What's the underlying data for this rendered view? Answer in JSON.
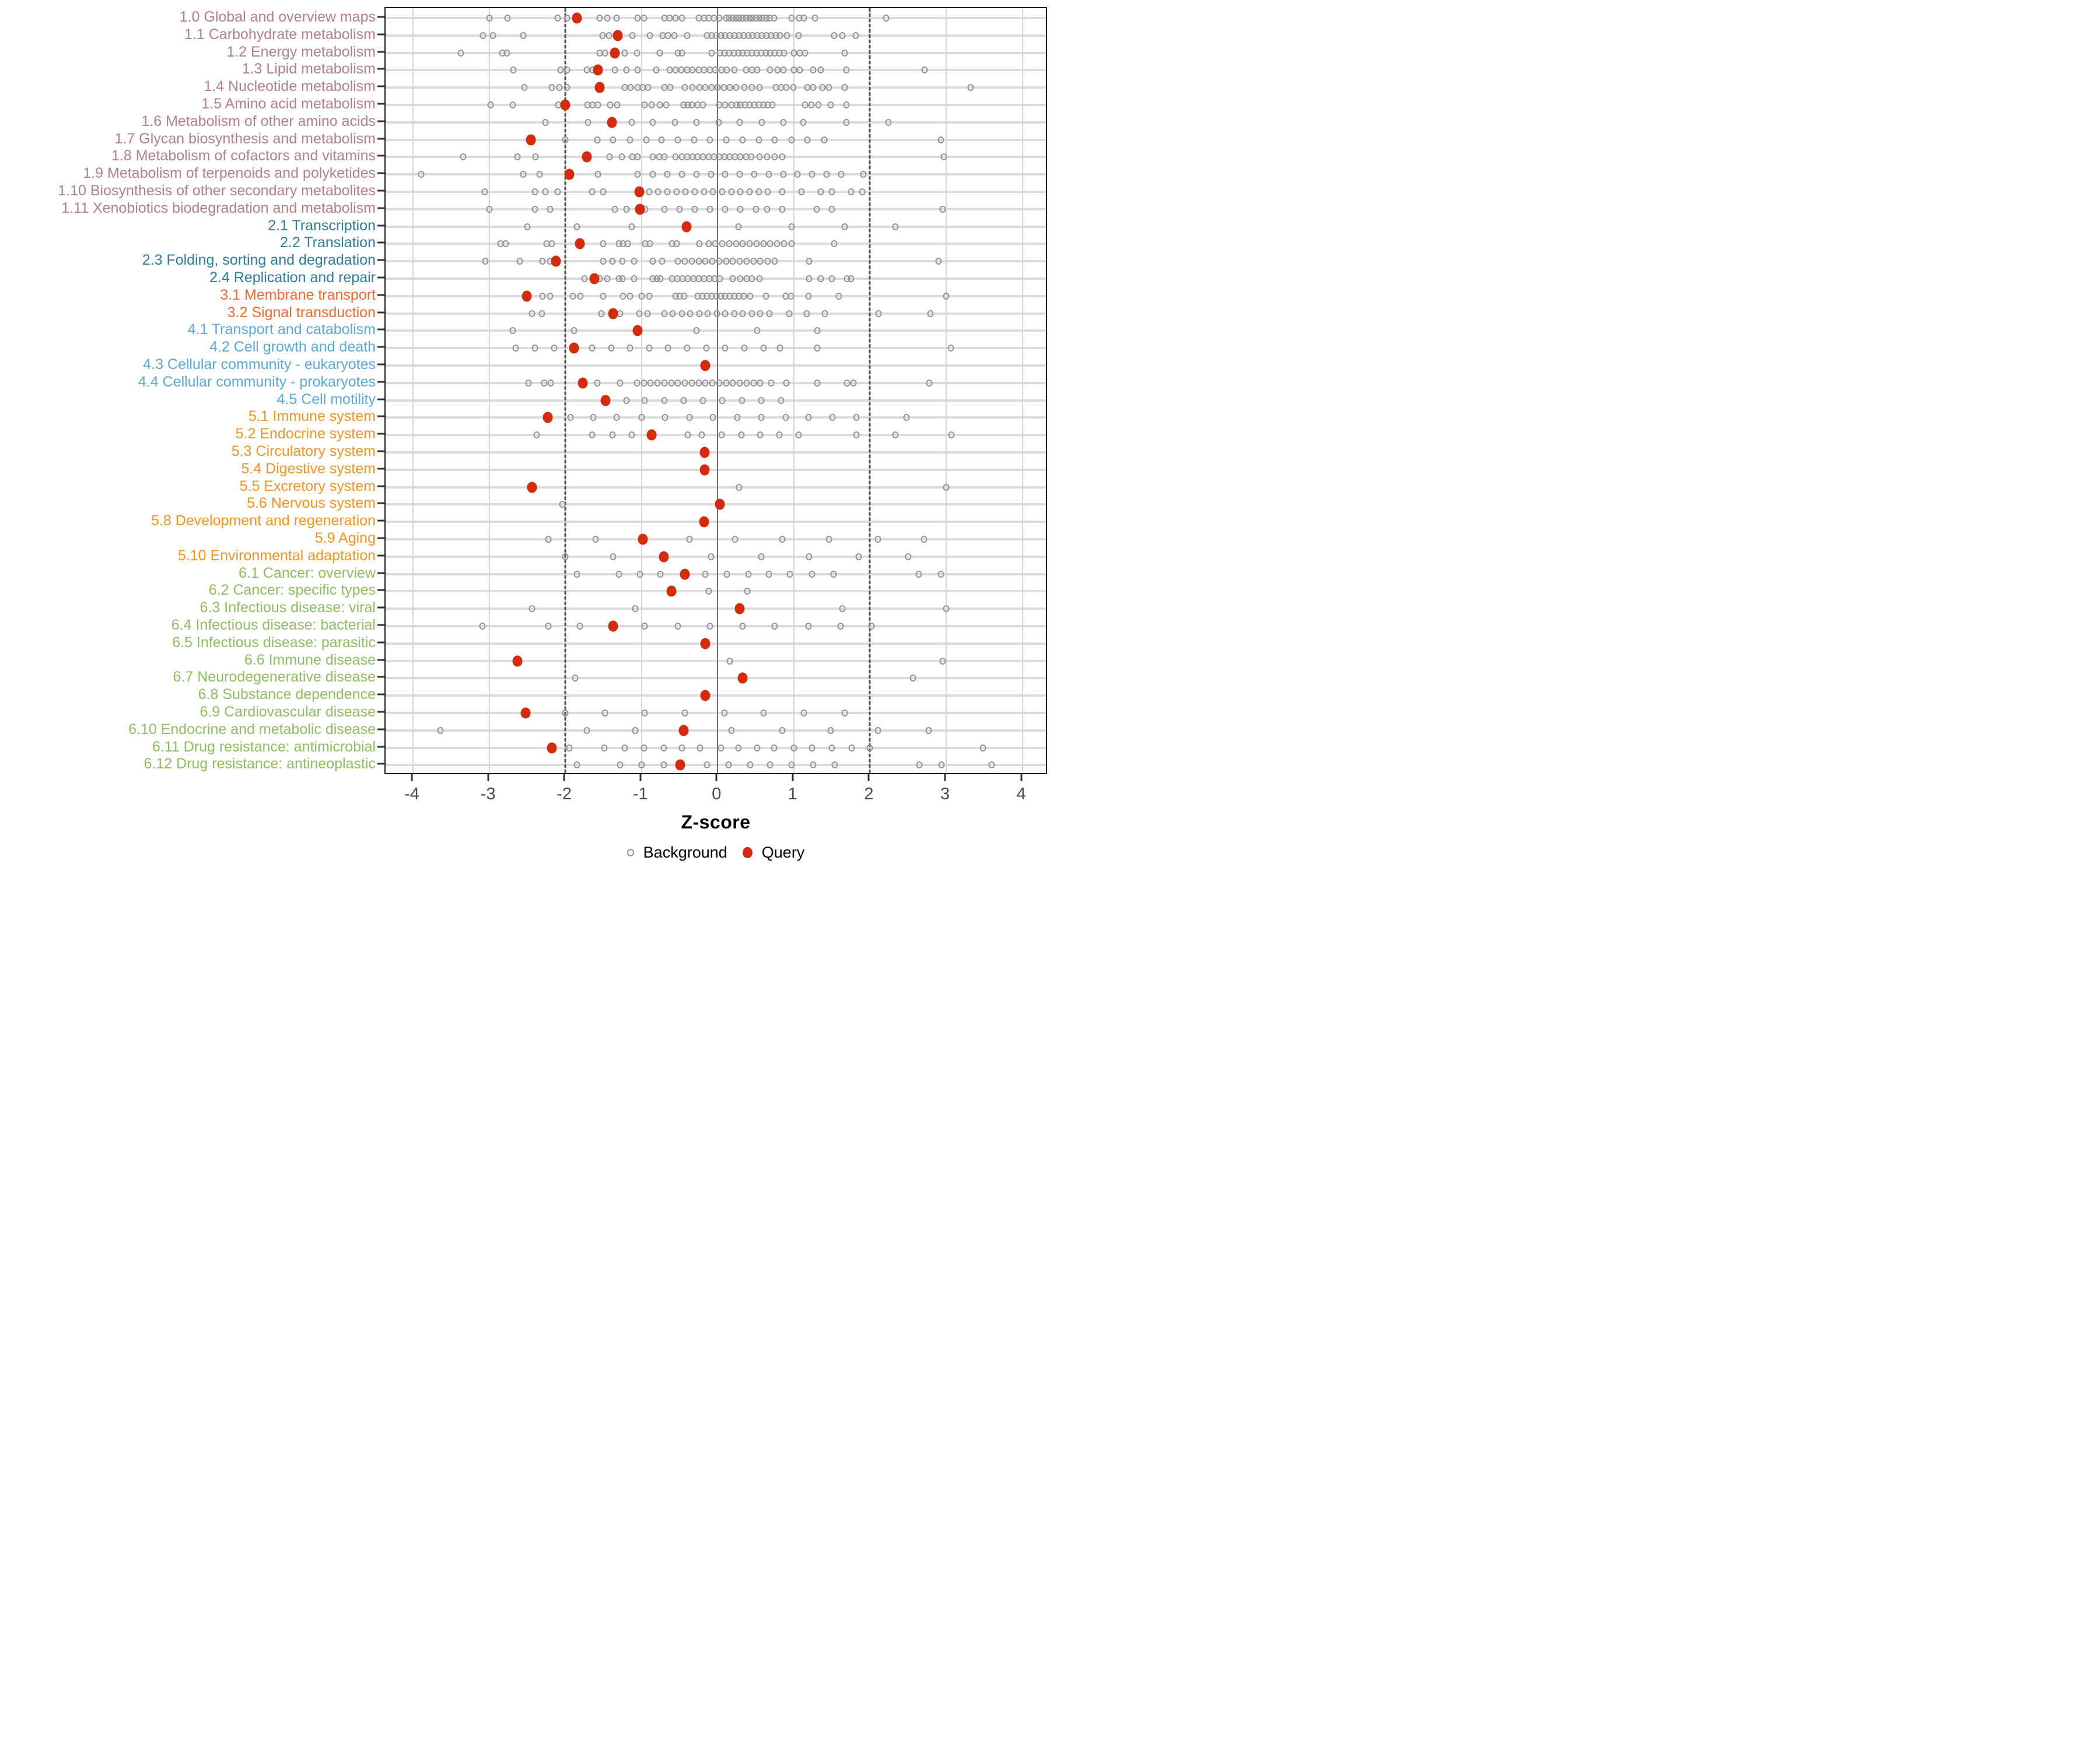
{
  "axis": {
    "xlabel": "Z-score",
    "tick_labels": [
      "-4",
      "-3",
      "-2",
      "-1",
      "0",
      "1",
      "2",
      "3",
      "4"
    ]
  },
  "legend": {
    "background_label": "Background",
    "query_label": "Query"
  },
  "colors": {
    "query": "#d52b0c",
    "background_stroke": "#949494",
    "group_1": "#b4808c",
    "group_2": "#2e7f9d",
    "group_3": "#f4692e",
    "group_4": "#58a9dc",
    "group_5": "#f79420",
    "group_6": "#8ebe5f",
    "grid": "#d6d6d6",
    "zero_line": "#6e6e6e",
    "dashed_line": "#4d4d4d"
  },
  "chart_data": {
    "type": "scatter",
    "title": "",
    "xlabel": "Z-score",
    "ylabel": "",
    "xlim": [
      -4.36,
      4.34
    ],
    "x_ticks": [
      -4,
      -3,
      -2,
      -1,
      0,
      1,
      2,
      3,
      4
    ],
    "reference_lines": {
      "solid": [
        0
      ],
      "dashed": [
        -2,
        2
      ]
    },
    "grid": true,
    "legend_position": "bottom",
    "legend_entries": [
      "Background",
      "Query"
    ],
    "categories": [
      {
        "label": "1.0 Global and overview maps",
        "group": "1",
        "query": -1.85,
        "background": [
          -3.0,
          -2.76,
          -2.1,
          -1.98,
          -1.55,
          -1.45,
          -1.33,
          -1.05,
          -0.97,
          -0.7,
          -0.63,
          -0.55,
          -0.47,
          -0.25,
          -0.18,
          -0.12,
          -0.05,
          0.02,
          0.11,
          0.15,
          0.2,
          0.24,
          0.28,
          0.33,
          0.37,
          0.42,
          0.46,
          0.5,
          0.55,
          0.59,
          0.64,
          0.68,
          0.74,
          0.97,
          1.07,
          1.13,
          1.28,
          2.21
        ]
      },
      {
        "label": "1.1 Carbohydrate metabolism",
        "group": "1",
        "query": -1.31,
        "background": [
          -3.08,
          -2.95,
          -2.55,
          -1.51,
          -1.43,
          -1.29,
          -1.12,
          -0.89,
          -0.72,
          -0.65,
          -0.57,
          -0.4,
          -0.14,
          -0.08,
          -0.02,
          0.04,
          0.1,
          0.16,
          0.22,
          0.28,
          0.34,
          0.4,
          0.46,
          0.52,
          0.58,
          0.64,
          0.7,
          0.76,
          0.82,
          0.91,
          1.06,
          1.53,
          1.64,
          1.81
        ]
      },
      {
        "label": "1.2 Energy metabolism",
        "group": "1",
        "query": -1.35,
        "background": [
          -3.37,
          -2.83,
          -2.77,
          -1.55,
          -1.48,
          -1.22,
          -1.06,
          -0.76,
          -0.52,
          -0.47,
          -0.08,
          0.03,
          0.09,
          0.15,
          0.21,
          0.27,
          0.33,
          0.39,
          0.45,
          0.51,
          0.57,
          0.63,
          0.69,
          0.75,
          0.81,
          0.87,
          1.0,
          1.08,
          1.15,
          1.67
        ]
      },
      {
        "label": "1.3 Lipid metabolism",
        "group": "1",
        "query": -1.57,
        "background": [
          -2.68,
          -2.06,
          -1.98,
          -1.72,
          -1.64,
          -1.35,
          -1.2,
          -1.05,
          -0.81,
          -0.63,
          -0.55,
          -0.48,
          -0.4,
          -0.33,
          -0.25,
          -0.18,
          -0.1,
          -0.03,
          0.05,
          0.12,
          0.22,
          0.37,
          0.45,
          0.52,
          0.69,
          0.79,
          0.86,
          1.0,
          1.08,
          1.25,
          1.35,
          1.69,
          2.72
        ]
      },
      {
        "label": "1.4 Nucleotide metabolism",
        "group": "1",
        "query": -1.55,
        "background": [
          -2.54,
          -2.18,
          -2.08,
          -1.98,
          -1.22,
          -1.14,
          -1.05,
          -0.98,
          -0.91,
          -0.7,
          -0.62,
          -0.43,
          -0.33,
          -0.24,
          -0.16,
          -0.08,
          0.0,
          0.08,
          0.16,
          0.24,
          0.35,
          0.45,
          0.55,
          0.76,
          0.83,
          0.9,
          0.99,
          1.18,
          1.25,
          1.38,
          1.46,
          1.67,
          3.32
        ]
      },
      {
        "label": "1.5 Amino acid metabolism",
        "group": "1",
        "query": -2.0,
        "background": [
          -2.98,
          -2.69,
          -2.09,
          -2.02,
          -1.71,
          -1.64,
          -1.57,
          -1.41,
          -1.32,
          -0.96,
          -0.87,
          -0.76,
          -0.68,
          -0.45,
          -0.39,
          -0.34,
          -0.26,
          -0.19,
          0.02,
          0.1,
          0.18,
          0.25,
          0.3,
          0.36,
          0.42,
          0.48,
          0.54,
          0.6,
          0.66,
          0.72,
          1.15,
          1.23,
          1.32,
          1.48,
          1.69
        ]
      },
      {
        "label": "1.6 Metabolism of other amino acids",
        "group": "1",
        "query": -1.39,
        "background": [
          -2.26,
          -1.7,
          -1.13,
          -0.85,
          -0.56,
          -0.28,
          0.01,
          0.29,
          0.58,
          0.86,
          1.12,
          1.69,
          2.24
        ]
      },
      {
        "label": "1.7 Glycan biosynthesis and metabolism",
        "group": "1",
        "query": -2.45,
        "background": [
          -2.0,
          -1.58,
          -1.37,
          -1.15,
          -0.94,
          -0.74,
          -0.52,
          -0.31,
          -0.1,
          0.11,
          0.33,
          0.54,
          0.75,
          0.97,
          1.18,
          1.4,
          2.93
        ]
      },
      {
        "label": "1.8 Metabolism of cofactors and vitamins",
        "group": "1",
        "query": -1.72,
        "background": [
          -3.34,
          -2.63,
          -2.39,
          -1.42,
          -1.26,
          -1.12,
          -1.05,
          -0.85,
          -0.77,
          -0.7,
          -0.55,
          -0.47,
          -0.4,
          -0.33,
          -0.26,
          -0.19,
          -0.12,
          -0.05,
          0.02,
          0.09,
          0.16,
          0.23,
          0.3,
          0.37,
          0.44,
          0.55,
          0.65,
          0.75,
          0.85,
          2.97
        ]
      },
      {
        "label": "1.9 Metabolism of terpenoids and polyketides",
        "group": "1",
        "query": -1.95,
        "background": [
          -3.89,
          -2.55,
          -2.34,
          -1.57,
          -1.05,
          -0.85,
          -0.66,
          -0.47,
          -0.28,
          -0.09,
          0.1,
          0.29,
          0.48,
          0.67,
          0.86,
          1.05,
          1.24,
          1.43,
          1.62,
          1.91
        ]
      },
      {
        "label": "1.10 Biosynthesis of other secondary metabolites",
        "group": "1",
        "query": -1.03,
        "background": [
          -3.06,
          -2.4,
          -2.26,
          -2.1,
          -1.65,
          -1.5,
          -0.9,
          -0.78,
          -0.66,
          -0.54,
          -0.42,
          -0.3,
          -0.18,
          -0.06,
          0.06,
          0.18,
          0.3,
          0.42,
          0.54,
          0.66,
          0.85,
          1.1,
          1.35,
          1.5,
          1.75,
          1.9
        ]
      },
      {
        "label": "1.11 Xenobiotics biodegradation and metabolism",
        "group": "1",
        "query": -1.02,
        "background": [
          -3.0,
          -2.4,
          -2.2,
          -1.35,
          -1.2,
          -0.95,
          -0.7,
          -0.5,
          -0.3,
          -0.1,
          0.1,
          0.3,
          0.5,
          0.65,
          0.85,
          1.3,
          1.5,
          2.95
        ]
      },
      {
        "label": "2.1 Transcription",
        "group": "2",
        "query": -0.41,
        "background": [
          -2.5,
          -1.85,
          -1.13,
          0.27,
          0.97,
          1.67,
          2.33
        ]
      },
      {
        "label": "2.2 Translation",
        "group": "2",
        "query": -1.81,
        "background": [
          -2.85,
          -2.78,
          -2.25,
          -2.18,
          -1.5,
          -1.3,
          -1.24,
          -1.18,
          -0.95,
          -0.89,
          -0.6,
          -0.54,
          -0.24,
          -0.12,
          -0.03,
          0.06,
          0.15,
          0.24,
          0.33,
          0.42,
          0.51,
          0.6,
          0.69,
          0.78,
          0.87,
          0.97,
          1.53
        ]
      },
      {
        "label": "2.3 Folding, sorting and degradation",
        "group": "2",
        "query": -2.12,
        "background": [
          -3.05,
          -2.6,
          -2.3,
          -2.2,
          -1.5,
          -1.38,
          -1.25,
          -1.1,
          -0.85,
          -0.73,
          -0.52,
          -0.43,
          -0.34,
          -0.25,
          -0.16,
          -0.07,
          0.02,
          0.11,
          0.2,
          0.29,
          0.38,
          0.47,
          0.56,
          0.66,
          0.75,
          1.2,
          2.9
        ]
      },
      {
        "label": "2.4 Replication and repair",
        "group": "2",
        "query": -1.62,
        "background": [
          -1.75,
          -1.55,
          -1.45,
          -1.3,
          -1.25,
          -1.1,
          -0.85,
          -0.8,
          -0.75,
          -0.6,
          -0.53,
          -0.46,
          -0.39,
          -0.32,
          -0.25,
          -0.18,
          -0.11,
          -0.04,
          0.03,
          0.2,
          0.3,
          0.38,
          0.45,
          0.55,
          1.2,
          1.35,
          1.5,
          1.7,
          1.75
        ]
      },
      {
        "label": "3.1 Membrane transport",
        "group": "3",
        "query": -2.51,
        "background": [
          -2.3,
          -2.2,
          -1.9,
          -1.8,
          -1.5,
          -1.24,
          -1.15,
          -1.0,
          -0.9,
          -0.55,
          -0.5,
          -0.44,
          -0.26,
          -0.2,
          -0.14,
          -0.08,
          -0.02,
          0.04,
          0.1,
          0.16,
          0.22,
          0.28,
          0.34,
          0.43,
          0.63,
          0.89,
          0.96,
          1.19,
          1.59,
          3.0
        ]
      },
      {
        "label": "3.2 Signal transduction",
        "group": "3",
        "query": -1.37,
        "background": [
          -2.44,
          -2.31,
          -1.53,
          -1.28,
          -1.03,
          -0.92,
          -0.7,
          -0.59,
          -0.47,
          -0.36,
          -0.24,
          -0.13,
          -0.01,
          0.1,
          0.22,
          0.33,
          0.45,
          0.56,
          0.68,
          0.94,
          1.17,
          1.41,
          2.11,
          2.79
        ]
      },
      {
        "label": "4.1 Transport and catabolism",
        "group": "4",
        "query": -1.05,
        "background": [
          -2.69,
          -1.89,
          -0.28,
          0.52,
          1.31
        ]
      },
      {
        "label": "4.2 Cell growth and death",
        "group": "4",
        "query": -1.89,
        "background": [
          -2.65,
          -2.4,
          -2.15,
          -1.65,
          -1.4,
          -1.15,
          -0.9,
          -0.65,
          -0.4,
          -0.15,
          0.1,
          0.35,
          0.6,
          0.82,
          1.31,
          3.06
        ]
      },
      {
        "label": "4.3 Cellular community - eukaryotes",
        "group": "4",
        "query": -0.16,
        "background": []
      },
      {
        "label": "4.4 Cellular community - prokaryotes",
        "group": "4",
        "query": -1.77,
        "background": [
          -2.48,
          -2.28,
          -2.19,
          -1.58,
          -1.28,
          -1.06,
          -0.97,
          -0.88,
          -0.79,
          -0.7,
          -0.61,
          -0.52,
          -0.43,
          -0.34,
          -0.25,
          -0.16,
          -0.07,
          0.02,
          0.11,
          0.2,
          0.29,
          0.38,
          0.47,
          0.56,
          0.7,
          0.9,
          1.31,
          1.7,
          1.78,
          2.78
        ]
      },
      {
        "label": "4.5 Cell motility",
        "group": "4",
        "query": -1.47,
        "background": [
          -1.2,
          -0.96,
          -0.7,
          -0.45,
          -0.19,
          0.06,
          0.32,
          0.57,
          0.83
        ]
      },
      {
        "label": "5.1 Immune system",
        "group": "5",
        "query": -2.23,
        "background": [
          -1.93,
          -1.63,
          -1.33,
          -1.0,
          -0.69,
          -0.37,
          -0.06,
          0.26,
          0.57,
          0.89,
          1.19,
          1.51,
          1.82,
          2.48
        ]
      },
      {
        "label": "5.2 Endocrine system",
        "group": "5",
        "query": -0.87,
        "background": [
          -2.38,
          -1.65,
          -1.38,
          -1.13,
          -0.39,
          -0.21,
          0.05,
          0.31,
          0.56,
          0.81,
          1.06,
          1.82,
          2.33,
          3.07
        ]
      },
      {
        "label": "5.3 Circulatory system",
        "group": "5",
        "query": -0.17,
        "background": []
      },
      {
        "label": "5.4 Digestive system",
        "group": "5",
        "query": -0.17,
        "background": []
      },
      {
        "label": "5.5 Excretory system",
        "group": "5",
        "query": -2.44,
        "background": [
          0.28,
          3.0
        ]
      },
      {
        "label": "5.6 Nervous system",
        "group": "5",
        "query": 0.03,
        "background": [
          -2.04
        ]
      },
      {
        "label": "5.8 Development and regeneration",
        "group": "5",
        "query": -0.18,
        "background": []
      },
      {
        "label": "5.9 Aging",
        "group": "5",
        "query": -0.98,
        "background": [
          -2.22,
          -1.6,
          -0.37,
          0.23,
          0.85,
          1.46,
          2.1,
          2.71
        ]
      },
      {
        "label": "5.10 Environmental adaptation",
        "group": "5",
        "query": -0.71,
        "background": [
          -2.0,
          -1.37,
          -0.09,
          0.57,
          1.2,
          1.85,
          2.5
        ]
      },
      {
        "label": "6.1 Cancer: overview",
        "group": "6",
        "query": -0.43,
        "background": [
          -1.85,
          -1.3,
          -1.02,
          -0.75,
          -0.16,
          0.12,
          0.4,
          0.67,
          0.95,
          1.24,
          1.52,
          2.64,
          2.93
        ]
      },
      {
        "label": "6.2 Cancer: specific types",
        "group": "6",
        "query": -0.61,
        "background": [
          -0.12,
          0.39
        ]
      },
      {
        "label": "6.3 Infectious disease: viral",
        "group": "6",
        "query": 0.29,
        "background": [
          -2.44,
          -1.08,
          1.64,
          3.0
        ]
      },
      {
        "label": "6.4 Infectious disease: bacterial",
        "group": "6",
        "query": -1.37,
        "background": [
          -3.09,
          -2.22,
          -1.81,
          -0.96,
          -0.52,
          -0.1,
          0.33,
          0.75,
          1.19,
          1.61,
          2.02
        ]
      },
      {
        "label": "6.5 Infectious disease: parasitic",
        "group": "6",
        "query": -0.16,
        "background": []
      },
      {
        "label": "6.6 Immune disease",
        "group": "6",
        "query": -2.63,
        "background": [
          0.16,
          2.95
        ]
      },
      {
        "label": "6.7 Neurodegenerative disease",
        "group": "6",
        "query": 0.33,
        "background": [
          -1.87,
          2.56
        ]
      },
      {
        "label": "6.8 Substance dependence",
        "group": "6",
        "query": -0.16,
        "background": []
      },
      {
        "label": "6.9 Cardiovascular disease",
        "group": "6",
        "query": -2.52,
        "background": [
          -2.0,
          -1.48,
          -0.96,
          -0.43,
          0.09,
          0.6,
          1.13,
          1.67
        ]
      },
      {
        "label": "6.10 Endocrine and metabolic disease",
        "group": "6",
        "query": -0.45,
        "background": [
          -3.64,
          -1.72,
          -1.08,
          0.18,
          0.85,
          1.48,
          2.1,
          2.77
        ]
      },
      {
        "label": "6.11 Drug resistance: antimicrobial",
        "group": "6",
        "query": -2.18,
        "background": [
          -1.95,
          -1.49,
          -1.22,
          -0.97,
          -0.71,
          -0.47,
          -0.23,
          0.04,
          0.27,
          0.52,
          0.74,
          1.0,
          1.24,
          1.5,
          1.76,
          2.0,
          3.48
        ]
      },
      {
        "label": "6.12 Drug resistance: antineoplastic",
        "group": "6",
        "query": -0.49,
        "background": [
          -1.85,
          -1.28,
          -1.0,
          -0.71,
          -0.14,
          0.14,
          0.43,
          0.69,
          0.97,
          1.25,
          1.54,
          2.65,
          2.94,
          3.6
        ]
      }
    ]
  }
}
